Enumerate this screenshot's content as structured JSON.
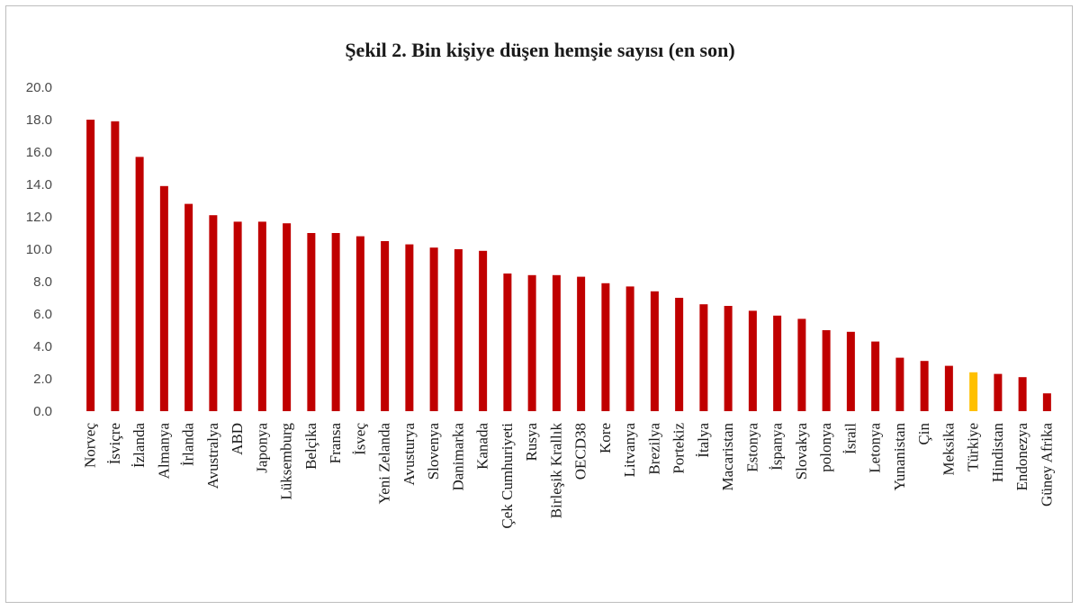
{
  "chart_data": {
    "type": "bar",
    "title": "Şekil 2. Bin kişiye düşen hemşie sayısı (en son)",
    "xlabel": "",
    "ylabel": "",
    "ylim": [
      0,
      20
    ],
    "yticks": [
      "0.0",
      "2.0",
      "4.0",
      "6.0",
      "8.0",
      "10.0",
      "12.0",
      "14.0",
      "16.0",
      "18.0",
      "20.0"
    ],
    "grid": false,
    "legend": "none",
    "colors": {
      "default": "#c00000",
      "highlight": "#ffc000"
    },
    "highlight_category": "Türkiye",
    "categories": [
      "Norveç",
      "İsviçre",
      "İzlanda",
      "Almanya",
      "İrlanda",
      "Avustralya",
      "ABD",
      "Japonya",
      "Lüksemburg",
      "Belçika",
      "Fransa",
      "İsveç",
      "Yeni Zelanda",
      "Avusturya",
      "Slovenya",
      "Danimarka",
      "Kanada",
      "Çek Cumhuriyeti",
      "Rusya",
      "Birleşik Krallık",
      "OECD38",
      "Kore",
      "Litvanya",
      "Brezilya",
      "Portekiz",
      "İtalya",
      "Macaristan",
      "Estonya",
      "İspanya",
      "Slovakya",
      "polonya",
      "İsrail",
      "Letonya",
      "Yunanistan",
      "Çin",
      "Meksika",
      "Türkiye",
      "Hindistan",
      "Endonezya",
      "Güney Afrika"
    ],
    "values": [
      18.0,
      17.9,
      15.7,
      13.9,
      12.8,
      12.1,
      11.7,
      11.7,
      11.6,
      11.0,
      11.0,
      10.8,
      10.5,
      10.3,
      10.1,
      10.0,
      9.9,
      8.5,
      8.4,
      8.4,
      8.3,
      7.9,
      7.7,
      7.4,
      7.0,
      6.6,
      6.5,
      6.2,
      5.9,
      5.7,
      5.0,
      4.9,
      4.3,
      3.3,
      3.1,
      2.8,
      2.4,
      2.3,
      2.1,
      1.1
    ]
  }
}
